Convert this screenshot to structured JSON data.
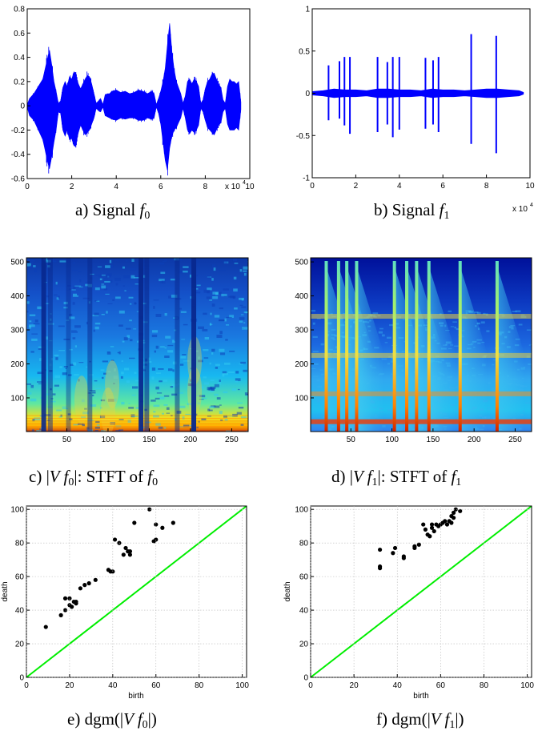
{
  "colors": {
    "signal": "#0000ff",
    "diagonal": "#00ee00",
    "points": "#000000",
    "heat_low": "#00007f",
    "heat_high": "#7f0000"
  },
  "chart_data": [
    {
      "type": "line",
      "panel": "a",
      "caption_text": "a) Signal ",
      "caption_math": "f0",
      "x_ticks": [
        "0",
        "2",
        "4",
        "6",
        "8",
        "10"
      ],
      "y_ticks": [
        "-0.6",
        "-0.4",
        "-0.2",
        "0",
        "0.2",
        "0.4",
        "0.6",
        "0.8"
      ],
      "xlim": [
        0,
        100000
      ],
      "ylim": [
        -0.6,
        0.8
      ],
      "x_multiplier": "x 10",
      "x_multiplier_exp": "4",
      "envelope_x": [
        0,
        1000,
        3000,
        5000,
        7000,
        8000,
        9000,
        10000,
        11000,
        12000,
        13000,
        14000,
        15000,
        16000,
        17000,
        18000,
        19000,
        20000,
        21000,
        22000,
        23000,
        24000,
        25000,
        26000,
        27000,
        28000,
        29000,
        30000,
        31000,
        32000,
        33000,
        34000,
        35000,
        36000,
        37000,
        38000,
        40000,
        42000,
        44000,
        46000,
        48000,
        50000,
        52000,
        54000,
        56000,
        57000,
        58000,
        59000,
        60000,
        61000,
        62000,
        63000,
        64000,
        65000,
        66000,
        67000,
        68000,
        69000,
        70000,
        71000,
        72000,
        73000,
        74000,
        75000,
        76000,
        77000,
        78000,
        79000,
        80000,
        81000,
        82000,
        83000,
        84000,
        85000,
        86000,
        87000,
        88000,
        89000,
        90000,
        91000,
        92000,
        93000,
        94000,
        95000,
        96000
      ],
      "envelope_hi": [
        0.01,
        0.06,
        0.1,
        0.16,
        0.22,
        0.3,
        0.38,
        0.46,
        0.34,
        0.2,
        0.12,
        0.02,
        0.04,
        0.15,
        0.2,
        0.16,
        0.24,
        0.22,
        0.28,
        0.24,
        0.18,
        0.14,
        0.18,
        0.22,
        0.25,
        0.24,
        0.18,
        0.1,
        0.02,
        0.04,
        0.06,
        0.01,
        0.09,
        0.1,
        0.1,
        0.12,
        0.13,
        0.11,
        0.12,
        0.1,
        0.11,
        0.13,
        0.12,
        0.1,
        0.12,
        0.1,
        0.01,
        0.06,
        0.12,
        0.2,
        0.31,
        0.5,
        0.68,
        0.45,
        0.3,
        0.2,
        0.15,
        0.1,
        0.02,
        0.08,
        0.2,
        0.22,
        0.18,
        0.22,
        0.2,
        0.16,
        0.02,
        0.05,
        0.14,
        0.2,
        0.22,
        0.26,
        0.27,
        0.22,
        0.18,
        0.15,
        0.05,
        0.02,
        0.16,
        0.22,
        0.2,
        0.2,
        0.18,
        0.2,
        0.03
      ],
      "envelope_lo": [
        -0.01,
        -0.08,
        -0.12,
        -0.2,
        -0.28,
        -0.36,
        -0.45,
        -0.52,
        -0.42,
        -0.3,
        -0.2,
        -0.05,
        -0.06,
        -0.2,
        -0.25,
        -0.2,
        -0.28,
        -0.27,
        -0.33,
        -0.3,
        -0.22,
        -0.16,
        -0.2,
        -0.24,
        -0.22,
        -0.2,
        -0.15,
        -0.1,
        -0.02,
        -0.04,
        -0.05,
        -0.01,
        -0.08,
        -0.09,
        -0.1,
        -0.11,
        -0.12,
        -0.1,
        -0.11,
        -0.1,
        -0.1,
        -0.12,
        -0.12,
        -0.1,
        -0.11,
        -0.1,
        -0.01,
        -0.06,
        -0.15,
        -0.3,
        -0.45,
        -0.53,
        -0.35,
        -0.25,
        -0.2,
        -0.18,
        -0.14,
        -0.1,
        -0.02,
        -0.1,
        -0.2,
        -0.23,
        -0.2,
        -0.22,
        -0.2,
        -0.16,
        -0.02,
        -0.05,
        -0.12,
        -0.18,
        -0.2,
        -0.22,
        -0.24,
        -0.2,
        -0.16,
        -0.14,
        -0.05,
        -0.02,
        -0.15,
        -0.2,
        -0.2,
        -0.2,
        -0.18,
        -0.2,
        -0.03
      ]
    },
    {
      "type": "line",
      "panel": "b",
      "caption_text": "b) Signal ",
      "caption_math": "f1",
      "x_ticks": [
        "0",
        "2",
        "4",
        "6",
        "8",
        "10"
      ],
      "y_ticks": [
        "-1",
        "-0.5",
        "0",
        "0.5",
        "1"
      ],
      "xlim": [
        0,
        100000
      ],
      "ylim": [
        -1,
        1
      ],
      "x_multiplier": "x 10",
      "x_multiplier_exp": "4",
      "noise_x": [
        0,
        5000,
        10000,
        15000,
        20000,
        25000,
        30000,
        35000,
        40000,
        45000,
        50000,
        55000,
        60000,
        65000,
        70000,
        75000,
        80000,
        85000,
        90000,
        95000,
        97000
      ],
      "noise_amp": [
        0.02,
        0.03,
        0.05,
        0.04,
        0.04,
        0.03,
        0.05,
        0.05,
        0.04,
        0.04,
        0.03,
        0.05,
        0.04,
        0.04,
        0.03,
        0.04,
        0.05,
        0.05,
        0.04,
        0.03,
        0.01
      ],
      "spikes": [
        {
          "x": 7500,
          "hi": 0.33,
          "lo": -0.32
        },
        {
          "x": 12500,
          "hi": 0.38,
          "lo": -0.3
        },
        {
          "x": 14800,
          "hi": 0.43,
          "lo": -0.38
        },
        {
          "x": 17300,
          "hi": 0.43,
          "lo": -0.48
        },
        {
          "x": 30000,
          "hi": 0.43,
          "lo": -0.46
        },
        {
          "x": 34500,
          "hi": 0.37,
          "lo": -0.37
        },
        {
          "x": 37000,
          "hi": 0.43,
          "lo": -0.52
        },
        {
          "x": 40000,
          "hi": 0.43,
          "lo": -0.43
        },
        {
          "x": 52000,
          "hi": 0.42,
          "lo": -0.42
        },
        {
          "x": 55500,
          "hi": 0.39,
          "lo": -0.37
        },
        {
          "x": 58000,
          "hi": 0.43,
          "lo": -0.46
        },
        {
          "x": 73000,
          "hi": 0.7,
          "lo": -0.6
        },
        {
          "x": 84500,
          "hi": 0.68,
          "lo": -0.71
        }
      ]
    },
    {
      "type": "heatmap",
      "panel": "c",
      "caption_pre": "c) ",
      "caption_math": "|Vf0|",
      "caption_text": ": STFT of ",
      "caption_math2": "f0",
      "x_ticks": [
        "50",
        "100",
        "150",
        "200",
        "250"
      ],
      "y_ticks": [
        "100",
        "200",
        "300",
        "400",
        "500"
      ],
      "xlim": [
        1,
        270
      ],
      "ylim": [
        1,
        512
      ],
      "columns": 270,
      "rows": 512,
      "vertical_bands": [
        {
          "x": 22,
          "strength": 0.9
        },
        {
          "x": 30,
          "strength": 0.5
        },
        {
          "x": 52,
          "strength": 0.4
        },
        {
          "x": 78,
          "strength": 0.5
        },
        {
          "x": 140,
          "strength": 0.95
        },
        {
          "x": 147,
          "strength": 0.6
        },
        {
          "x": 184,
          "strength": 0.5
        },
        {
          "x": 204,
          "strength": 0.95
        }
      ]
    },
    {
      "type": "heatmap",
      "panel": "d",
      "caption_pre": "d) ",
      "caption_math": "|Vf1|",
      "caption_text": ": STFT of ",
      "caption_math2": "f1",
      "x_ticks": [
        "50",
        "100",
        "150",
        "200",
        "250"
      ],
      "y_ticks": [
        "100",
        "200",
        "300",
        "400",
        "500"
      ],
      "xlim": [
        1,
        270
      ],
      "ylim": [
        1,
        512
      ],
      "columns": 270,
      "rows": 512,
      "onsets": [
        20,
        35,
        45,
        57,
        103,
        118,
        130,
        145,
        183,
        228
      ],
      "harmonic_rows": [
        30,
        112,
        225,
        340
      ]
    },
    {
      "type": "scatter",
      "panel": "e",
      "caption_pre": "e) ",
      "caption_func": "dgm",
      "caption_math": "(|Vf0|)",
      "xlabel": "birth",
      "ylabel": "death",
      "x_ticks": [
        "0",
        "20",
        "40",
        "60",
        "80",
        "100"
      ],
      "y_ticks": [
        "0",
        "20",
        "40",
        "60",
        "80",
        "100"
      ],
      "xlim": [
        0,
        102
      ],
      "ylim": [
        0,
        102
      ],
      "diagonal": [
        [
          0,
          0
        ],
        [
          102,
          102
        ]
      ],
      "points": [
        [
          9,
          30
        ],
        [
          16,
          37
        ],
        [
          18,
          40
        ],
        [
          18,
          47
        ],
        [
          20,
          43
        ],
        [
          20,
          47
        ],
        [
          21,
          42
        ],
        [
          22,
          45
        ],
        [
          23,
          44
        ],
        [
          23,
          45
        ],
        [
          25,
          53
        ],
        [
          27,
          55
        ],
        [
          29,
          56
        ],
        [
          32,
          58
        ],
        [
          38,
          64
        ],
        [
          39,
          63
        ],
        [
          40,
          63
        ],
        [
          41,
          82
        ],
        [
          43,
          80
        ],
        [
          45,
          73
        ],
        [
          46,
          77
        ],
        [
          47,
          75
        ],
        [
          48,
          73
        ],
        [
          48,
          75
        ],
        [
          50,
          92
        ],
        [
          57,
          100
        ],
        [
          59,
          81
        ],
        [
          60,
          82
        ],
        [
          60,
          91
        ],
        [
          63,
          89
        ],
        [
          68,
          92
        ]
      ]
    },
    {
      "type": "scatter",
      "panel": "f",
      "caption_pre": "f) ",
      "caption_func": "dgm",
      "caption_math": "(|Vf1|)",
      "xlabel": "birth",
      "ylabel": "death",
      "x_ticks": [
        "0",
        "20",
        "40",
        "60",
        "80",
        "100"
      ],
      "y_ticks": [
        "0",
        "20",
        "40",
        "60",
        "80",
        "100"
      ],
      "xlim": [
        0,
        102
      ],
      "ylim": [
        0,
        102
      ],
      "diagonal": [
        [
          0,
          0
        ],
        [
          102,
          102
        ]
      ],
      "points": [
        [
          32,
          76
        ],
        [
          32,
          66
        ],
        [
          32,
          65
        ],
        [
          38,
          74
        ],
        [
          39,
          77
        ],
        [
          43,
          72
        ],
        [
          43,
          71
        ],
        [
          48,
          77
        ],
        [
          48,
          78
        ],
        [
          50,
          79
        ],
        [
          52,
          91
        ],
        [
          53,
          88
        ],
        [
          54,
          85
        ],
        [
          55,
          84
        ],
        [
          56,
          89
        ],
        [
          56,
          91
        ],
        [
          57,
          87
        ],
        [
          58,
          91
        ],
        [
          59,
          90
        ],
        [
          60,
          91
        ],
        [
          61,
          92
        ],
        [
          62,
          93
        ],
        [
          63,
          91
        ],
        [
          64,
          93
        ],
        [
          65,
          92
        ],
        [
          65,
          96
        ],
        [
          66,
          95
        ],
        [
          66,
          98
        ],
        [
          67,
          100
        ],
        [
          69,
          99
        ]
      ]
    }
  ]
}
